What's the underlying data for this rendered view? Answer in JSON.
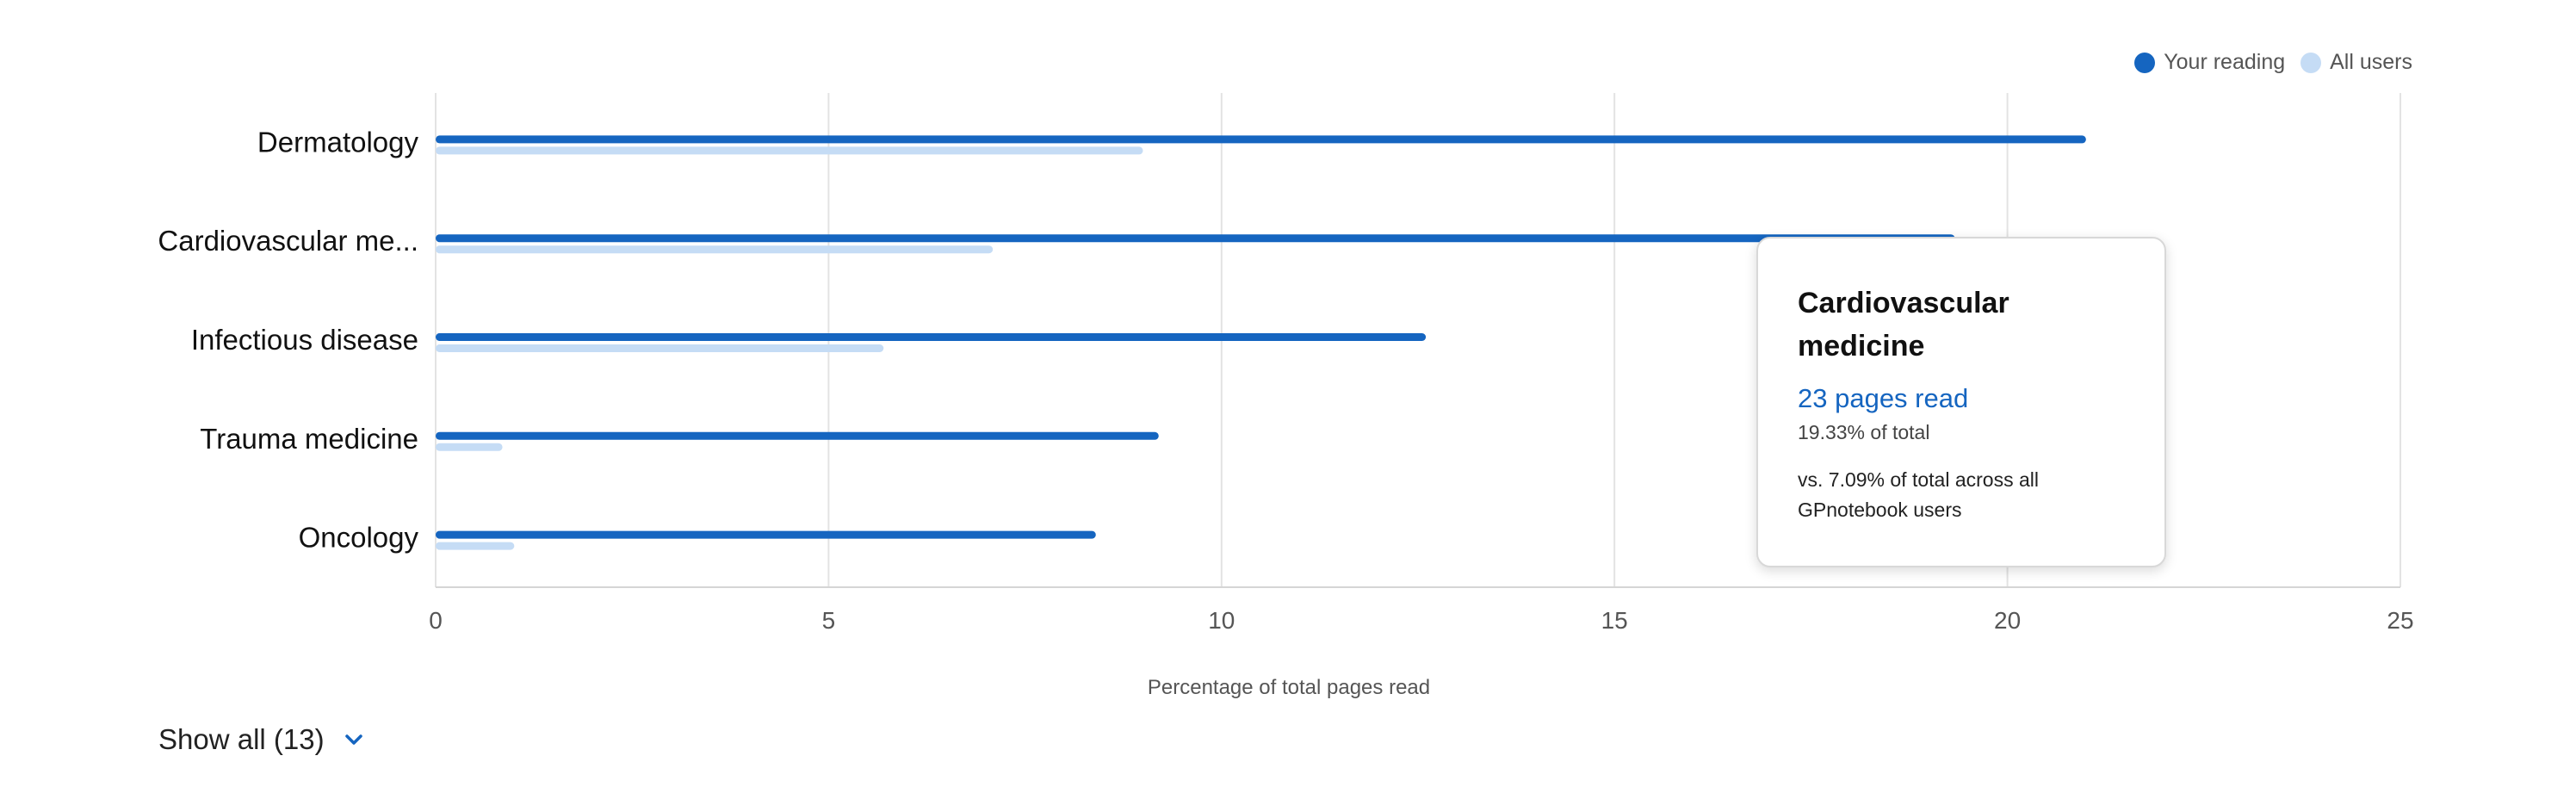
{
  "chart_data": {
    "type": "bar",
    "orientation": "horizontal",
    "categories": [
      "Dermatology",
      "Cardiovascular me...",
      "Infectious disease",
      "Trauma medicine",
      "Oncology"
    ],
    "series": [
      {
        "name": "Your reading",
        "color": "#1565c0",
        "values": [
          21.0,
          19.33,
          12.6,
          9.2,
          8.4
        ]
      },
      {
        "name": "All users",
        "color": "#c5dcf5",
        "values": [
          9.0,
          7.09,
          5.7,
          0.85,
          1.0
        ]
      }
    ],
    "xlabel": "Percentage of total pages read",
    "ylabel": "",
    "xlim": [
      0,
      25
    ],
    "xticks": [
      0,
      5,
      10,
      15,
      20,
      25
    ],
    "grid": true,
    "legend_position": "top-right"
  },
  "tooltip": {
    "title": "Cardiovascular medicine",
    "pages": "23 pages read",
    "percent": "19.33% of total",
    "comparison": "vs. 7.09% of total across all GPnotebook users"
  },
  "controls": {
    "show_all_label": "Show all (13)",
    "chevron_icon": "chevron-down-icon"
  },
  "colors": {
    "axis_label": "#555555",
    "category_label": "#111111",
    "grid": "#e3e3e3"
  }
}
